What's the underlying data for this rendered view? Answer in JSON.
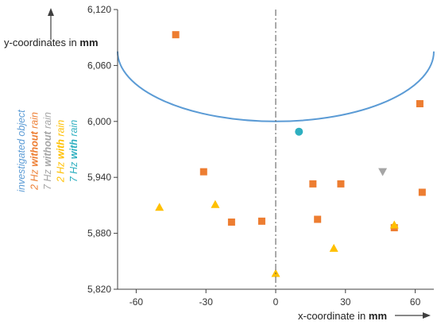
{
  "chart_data": {
    "type": "scatter",
    "title": "",
    "xlabel": {
      "text": "x-coordinate in ",
      "unit": "mm"
    },
    "ylabel": {
      "text": "y-coordinates in ",
      "unit": "mm"
    },
    "xlim": [
      -68,
      68
    ],
    "ylim": [
      5820,
      6120
    ],
    "x_ticks": [
      -60,
      -30,
      0,
      30,
      60
    ],
    "y_ticks": [
      5820,
      5880,
      5940,
      6000,
      6060,
      6120
    ],
    "x_tick_labels": [
      "-60",
      "-30",
      "0",
      "30",
      "60"
    ],
    "y_tick_labels": [
      "5,820",
      "5,880",
      "5,940",
      "6,000",
      "6,060",
      "6,120"
    ],
    "grid": false,
    "legend_position": "left, rotated vertical",
    "legend": [
      {
        "key": "object",
        "prefix": "investigated object",
        "bold": "",
        "suffix": "",
        "color": "#5b9bd5"
      },
      {
        "key": "hz2_dry",
        "prefix": "2 Hz ",
        "bold": "without",
        "suffix": " rain",
        "color": "#ed7d31"
      },
      {
        "key": "hz7_dry",
        "prefix": "7 Hz ",
        "bold": "without",
        "suffix": " rain",
        "color": "#a5a5a5"
      },
      {
        "key": "hz2_wet",
        "prefix": "2 Hz ",
        "bold": "with",
        "suffix": " rain",
        "color": "#ffc000"
      },
      {
        "key": "hz7_wet",
        "prefix": "7 Hz ",
        "bold": "with",
        "suffix": " rain",
        "color": "#2eafc0"
      }
    ],
    "object_curve": {
      "color": "#5b9bd5",
      "center_x": 0,
      "center_y": 6075,
      "half_width": 68,
      "depth": 75
    },
    "center_line_x": 0,
    "series": [
      {
        "name": "2 Hz without rain",
        "marker": "square",
        "color": "#ed7d31",
        "points": [
          [
            -43,
            6093
          ],
          [
            -31,
            5946
          ],
          [
            -19,
            5892
          ],
          [
            -6,
            5893
          ],
          [
            16,
            5933
          ],
          [
            18,
            5895
          ],
          [
            28,
            5933
          ],
          [
            51,
            5886
          ],
          [
            62,
            6019
          ],
          [
            63,
            5924
          ]
        ]
      },
      {
        "name": "7 Hz without rain",
        "marker": "triangle-down",
        "color": "#a5a5a5",
        "points": [
          [
            46,
            5946
          ]
        ]
      },
      {
        "name": "2 Hz with rain",
        "marker": "triangle-up",
        "color": "#ffc000",
        "points": [
          [
            -50,
            5908
          ],
          [
            -26,
            5911
          ],
          [
            0,
            5837
          ],
          [
            25,
            5864
          ],
          [
            51,
            5889
          ]
        ]
      },
      {
        "name": "7 Hz with rain",
        "marker": "circle",
        "color": "#2eafc0",
        "points": [
          [
            10,
            5989
          ]
        ]
      }
    ]
  }
}
